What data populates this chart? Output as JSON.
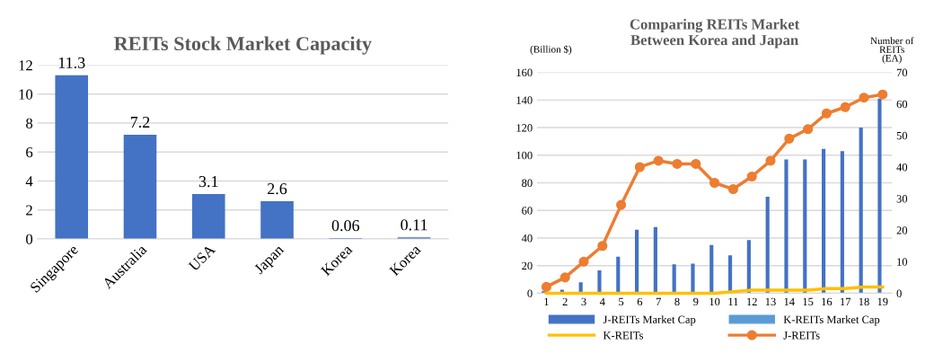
{
  "chart_data": [
    {
      "type": "bar",
      "title": "REITs Stock Market Capacity",
      "categories": [
        "Singapore",
        "Australia",
        "USA",
        "Japan",
        "Korea",
        "Korea"
      ],
      "values": [
        11.3,
        7.2,
        3.1,
        2.6,
        0.06,
        0.11
      ],
      "color": "#4472c4",
      "ylim": [
        0,
        12
      ],
      "yticks": [
        0,
        2,
        4,
        6,
        8,
        10,
        12
      ],
      "grid": "y",
      "data_labels": true,
      "legend": false
    },
    {
      "type": "bar",
      "title": "Comparing REITs Market\nBetween Korea and Japan",
      "ylabel": "(Billion $)",
      "y2label": "Number of\nREITs\n(EA)",
      "categories": [
        "1",
        "2",
        "3",
        "4",
        "5",
        "6",
        "7",
        "8",
        "9",
        "10",
        "11",
        "12",
        "13",
        "14",
        "15",
        "16",
        "17",
        "18",
        "19"
      ],
      "series": [
        {
          "name": "J-REITs Market Cap",
          "type": "bar",
          "color": "#4472c4",
          "values": [
            1.5,
            2.5,
            8,
            16.5,
            26.5,
            46,
            48,
            21,
            21.5,
            35,
            27.5,
            38.5,
            70,
            97,
            97,
            104.5,
            103,
            120,
            141
          ]
        },
        {
          "name": "K-REITs Market Cap",
          "type": "bar",
          "color": "#5b9bd5",
          "values": [
            null,
            null,
            null,
            null,
            null,
            null,
            null,
            null,
            null,
            null,
            null,
            null,
            null,
            null,
            null,
            null,
            null,
            null,
            null
          ]
        },
        {
          "name": "K-REITs",
          "type": "line",
          "axis": "y2",
          "color": "#ffc000",
          "marker": "none",
          "values": [
            0,
            0,
            0,
            0,
            0,
            0,
            0,
            0,
            0,
            0,
            0.5,
            1,
            1,
            1,
            1,
            1.5,
            1.5,
            2,
            2
          ]
        },
        {
          "name": "J-REITs",
          "type": "line",
          "axis": "y2",
          "color": "#ed7d31",
          "marker": "circle",
          "values": [
            2,
            5,
            10,
            15,
            28,
            40,
            42,
            41,
            41,
            35,
            33,
            37,
            42,
            49,
            52,
            57,
            59,
            62,
            63
          ]
        }
      ],
      "ylim": [
        0,
        160
      ],
      "yticks": [
        0,
        20,
        40,
        60,
        80,
        100,
        120,
        140,
        160
      ],
      "y2lim": [
        0,
        70
      ],
      "y2ticks": [
        0,
        10,
        20,
        30,
        40,
        50,
        60,
        70
      ],
      "grid": "y",
      "legend": "bottom"
    }
  ]
}
